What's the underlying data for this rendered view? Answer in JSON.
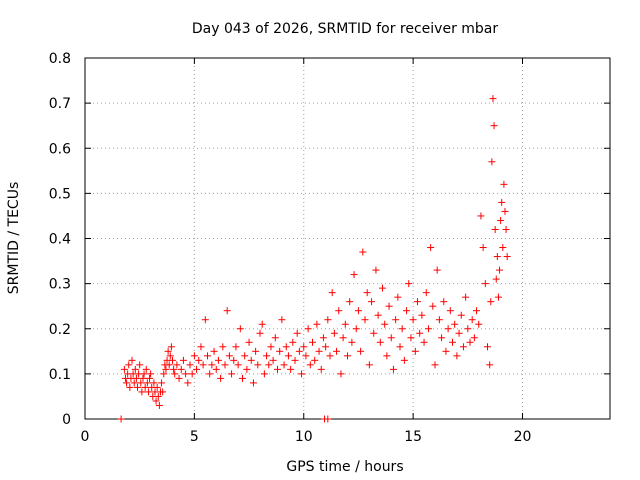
{
  "chart_data": {
    "type": "scatter",
    "title": "Day 043 of 2026, SRMTID for receiver mbar",
    "xlabel": "GPS time / hours",
    "ylabel": "SRMTID / TECUs",
    "xlim": [
      0,
      24
    ],
    "ylim": [
      0,
      0.8
    ],
    "xticks": [
      0,
      5,
      10,
      15,
      20
    ],
    "yticks": [
      0,
      0.1,
      0.2,
      0.3,
      0.4,
      0.5,
      0.6,
      0.7,
      0.8
    ],
    "xtick_labels": [
      "0",
      "5",
      "10",
      "15",
      "20"
    ],
    "ytick_labels": [
      "0",
      "0.1",
      "0.2",
      "0.3",
      "0.4",
      "0.5",
      "0.6",
      "0.7",
      "0.8"
    ],
    "grid": true,
    "marker": "+",
    "color": "#ff0000",
    "series": [
      {
        "name": "SRMTID",
        "points": [
          [
            1.65,
            0.0
          ],
          [
            10.95,
            0.0
          ],
          [
            11.1,
            0.0
          ],
          [
            1.8,
            0.11
          ],
          [
            1.85,
            0.09
          ],
          [
            1.9,
            0.08
          ],
          [
            1.95,
            0.1
          ],
          [
            2.0,
            0.12
          ],
          [
            2.05,
            0.07
          ],
          [
            2.1,
            0.09
          ],
          [
            2.15,
            0.13
          ],
          [
            2.2,
            0.1
          ],
          [
            2.25,
            0.08
          ],
          [
            2.3,
            0.11
          ],
          [
            2.35,
            0.09
          ],
          [
            2.4,
            0.07
          ],
          [
            2.45,
            0.1
          ],
          [
            2.5,
            0.12
          ],
          [
            2.55,
            0.08
          ],
          [
            2.6,
            0.06
          ],
          [
            2.65,
            0.09
          ],
          [
            2.7,
            0.1
          ],
          [
            2.75,
            0.07
          ],
          [
            2.8,
            0.11
          ],
          [
            2.85,
            0.08
          ],
          [
            2.9,
            0.06
          ],
          [
            2.95,
            0.09
          ],
          [
            3.0,
            0.1
          ],
          [
            3.05,
            0.07
          ],
          [
            3.1,
            0.05
          ],
          [
            3.15,
            0.08
          ],
          [
            3.2,
            0.06
          ],
          [
            3.25,
            0.04
          ],
          [
            3.3,
            0.07
          ],
          [
            3.35,
            0.05
          ],
          [
            3.4,
            0.03
          ],
          [
            3.45,
            0.06
          ],
          [
            3.5,
            0.08
          ],
          [
            3.55,
            0.06
          ],
          [
            3.6,
            0.1
          ],
          [
            3.65,
            0.12
          ],
          [
            3.7,
            0.11
          ],
          [
            3.75,
            0.13
          ],
          [
            3.8,
            0.15
          ],
          [
            3.85,
            0.12
          ],
          [
            3.9,
            0.14
          ],
          [
            3.95,
            0.16
          ],
          [
            4.0,
            0.13
          ],
          [
            4.05,
            0.11
          ],
          [
            4.1,
            0.1
          ],
          [
            4.2,
            0.12
          ],
          [
            4.3,
            0.09
          ],
          [
            4.4,
            0.11
          ],
          [
            4.5,
            0.13
          ],
          [
            4.6,
            0.1
          ],
          [
            4.7,
            0.08
          ],
          [
            4.8,
            0.12
          ],
          [
            4.9,
            0.1
          ],
          [
            5.0,
            0.14
          ],
          [
            5.1,
            0.11
          ],
          [
            5.2,
            0.13
          ],
          [
            5.3,
            0.16
          ],
          [
            5.4,
            0.12
          ],
          [
            5.5,
            0.22
          ],
          [
            5.6,
            0.14
          ],
          [
            5.7,
            0.1
          ],
          [
            5.8,
            0.12
          ],
          [
            5.9,
            0.15
          ],
          [
            6.0,
            0.11
          ],
          [
            6.1,
            0.13
          ],
          [
            6.2,
            0.09
          ],
          [
            6.3,
            0.16
          ],
          [
            6.4,
            0.12
          ],
          [
            6.5,
            0.24
          ],
          [
            6.6,
            0.14
          ],
          [
            6.7,
            0.1
          ],
          [
            6.8,
            0.13
          ],
          [
            6.9,
            0.16
          ],
          [
            7.0,
            0.12
          ],
          [
            7.1,
            0.2
          ],
          [
            7.2,
            0.09
          ],
          [
            7.3,
            0.14
          ],
          [
            7.4,
            0.11
          ],
          [
            7.5,
            0.17
          ],
          [
            7.6,
            0.13
          ],
          [
            7.7,
            0.08
          ],
          [
            7.8,
            0.15
          ],
          [
            7.9,
            0.12
          ],
          [
            8.0,
            0.19
          ],
          [
            8.1,
            0.21
          ],
          [
            8.2,
            0.1
          ],
          [
            8.3,
            0.14
          ],
          [
            8.4,
            0.12
          ],
          [
            8.5,
            0.16
          ],
          [
            8.6,
            0.13
          ],
          [
            8.7,
            0.18
          ],
          [
            8.8,
            0.11
          ],
          [
            8.9,
            0.15
          ],
          [
            9.0,
            0.22
          ],
          [
            9.1,
            0.12
          ],
          [
            9.2,
            0.16
          ],
          [
            9.3,
            0.14
          ],
          [
            9.4,
            0.11
          ],
          [
            9.5,
            0.17
          ],
          [
            9.6,
            0.13
          ],
          [
            9.7,
            0.19
          ],
          [
            9.8,
            0.15
          ],
          [
            9.9,
            0.1
          ],
          [
            10.0,
            0.16
          ],
          [
            10.1,
            0.14
          ],
          [
            10.2,
            0.2
          ],
          [
            10.3,
            0.12
          ],
          [
            10.4,
            0.17
          ],
          [
            10.5,
            0.13
          ],
          [
            10.6,
            0.21
          ],
          [
            10.7,
            0.15
          ],
          [
            10.8,
            0.11
          ],
          [
            10.9,
            0.18
          ],
          [
            11.0,
            0.16
          ],
          [
            11.1,
            0.22
          ],
          [
            11.2,
            0.14
          ],
          [
            11.3,
            0.28
          ],
          [
            11.4,
            0.19
          ],
          [
            11.5,
            0.15
          ],
          [
            11.6,
            0.24
          ],
          [
            11.7,
            0.1
          ],
          [
            11.8,
            0.18
          ],
          [
            11.9,
            0.21
          ],
          [
            12.0,
            0.14
          ],
          [
            12.1,
            0.26
          ],
          [
            12.2,
            0.17
          ],
          [
            12.3,
            0.32
          ],
          [
            12.4,
            0.2
          ],
          [
            12.5,
            0.24
          ],
          [
            12.6,
            0.15
          ],
          [
            12.7,
            0.37
          ],
          [
            12.8,
            0.22
          ],
          [
            12.9,
            0.28
          ],
          [
            13.0,
            0.12
          ],
          [
            13.1,
            0.26
          ],
          [
            13.2,
            0.19
          ],
          [
            13.3,
            0.33
          ],
          [
            13.4,
            0.23
          ],
          [
            13.5,
            0.17
          ],
          [
            13.6,
            0.29
          ],
          [
            13.7,
            0.21
          ],
          [
            13.8,
            0.14
          ],
          [
            13.9,
            0.25
          ],
          [
            14.0,
            0.18
          ],
          [
            14.1,
            0.11
          ],
          [
            14.2,
            0.22
          ],
          [
            14.3,
            0.27
          ],
          [
            14.4,
            0.16
          ],
          [
            14.5,
            0.2
          ],
          [
            14.6,
            0.13
          ],
          [
            14.7,
            0.24
          ],
          [
            14.8,
            0.3
          ],
          [
            14.9,
            0.18
          ],
          [
            15.0,
            0.22
          ],
          [
            15.1,
            0.15
          ],
          [
            15.2,
            0.26
          ],
          [
            15.3,
            0.19
          ],
          [
            15.4,
            0.23
          ],
          [
            15.5,
            0.17
          ],
          [
            15.6,
            0.28
          ],
          [
            15.7,
            0.2
          ],
          [
            15.8,
            0.38
          ],
          [
            15.9,
            0.25
          ],
          [
            16.0,
            0.12
          ],
          [
            16.1,
            0.33
          ],
          [
            16.2,
            0.22
          ],
          [
            16.3,
            0.18
          ],
          [
            16.4,
            0.26
          ],
          [
            16.5,
            0.15
          ],
          [
            16.6,
            0.2
          ],
          [
            16.7,
            0.24
          ],
          [
            16.8,
            0.17
          ],
          [
            16.9,
            0.21
          ],
          [
            17.0,
            0.14
          ],
          [
            17.1,
            0.19
          ],
          [
            17.2,
            0.23
          ],
          [
            17.3,
            0.16
          ],
          [
            17.4,
            0.27
          ],
          [
            17.5,
            0.2
          ],
          [
            17.6,
            0.17
          ],
          [
            17.7,
            0.22
          ],
          [
            17.8,
            0.18
          ],
          [
            17.9,
            0.24
          ],
          [
            18.0,
            0.21
          ],
          [
            18.1,
            0.45
          ],
          [
            18.2,
            0.38
          ],
          [
            18.3,
            0.3
          ],
          [
            18.4,
            0.16
          ],
          [
            18.5,
            0.12
          ],
          [
            18.55,
            0.26
          ],
          [
            18.6,
            0.57
          ],
          [
            18.65,
            0.71
          ],
          [
            18.7,
            0.65
          ],
          [
            18.75,
            0.42
          ],
          [
            18.8,
            0.31
          ],
          [
            18.85,
            0.36
          ],
          [
            18.9,
            0.27
          ],
          [
            18.95,
            0.33
          ],
          [
            19.0,
            0.44
          ],
          [
            19.05,
            0.48
          ],
          [
            19.1,
            0.38
          ],
          [
            19.15,
            0.52
          ],
          [
            19.2,
            0.46
          ],
          [
            19.25,
            0.42
          ],
          [
            19.3,
            0.36
          ]
        ]
      }
    ]
  }
}
